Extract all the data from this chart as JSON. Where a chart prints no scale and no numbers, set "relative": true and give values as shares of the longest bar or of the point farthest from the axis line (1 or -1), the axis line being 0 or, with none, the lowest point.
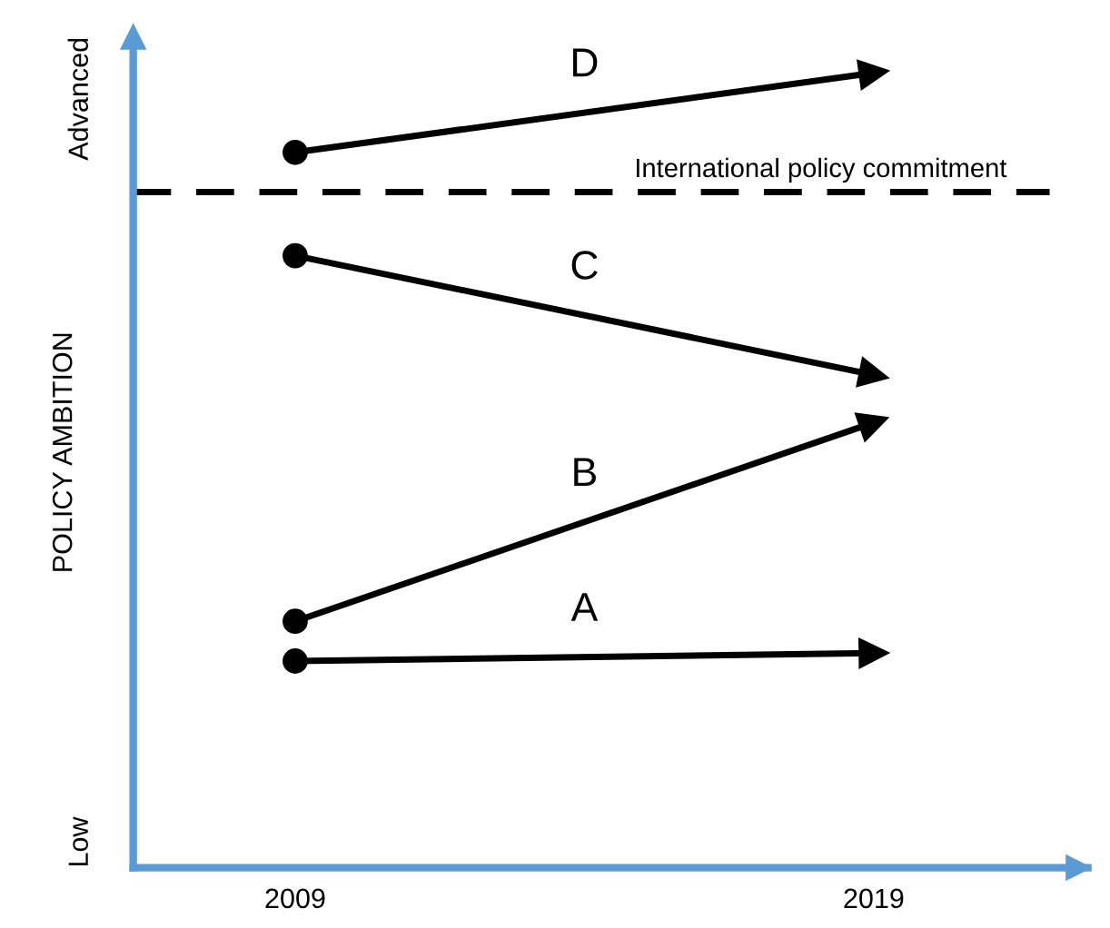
{
  "chart_data": {
    "type": "line",
    "relative": true,
    "ylabel": "POLICY AMBITION",
    "categories": [
      "2009",
      "2019"
    ],
    "series": [
      {
        "name": "A",
        "color": "#000000",
        "values": [
          0.26,
          0.27
        ]
      },
      {
        "name": "B",
        "color": "#000000",
        "values": [
          0.31,
          0.56
        ]
      },
      {
        "name": "C",
        "color": "#000000",
        "values": [
          0.77,
          0.62
        ]
      },
      {
        "name": "D",
        "color": "#000000",
        "values": [
          0.9,
          1.0
        ]
      }
    ],
    "marker": "circle",
    "ref_lines": [
      {
        "axis": "y",
        "value": 0.85,
        "label": "International policy commitment",
        "line_style": "dashed",
        "color": "#000000"
      }
    ],
    "annotations": [
      "Low",
      "Advanced"
    ],
    "grid": false,
    "legend": false
  }
}
